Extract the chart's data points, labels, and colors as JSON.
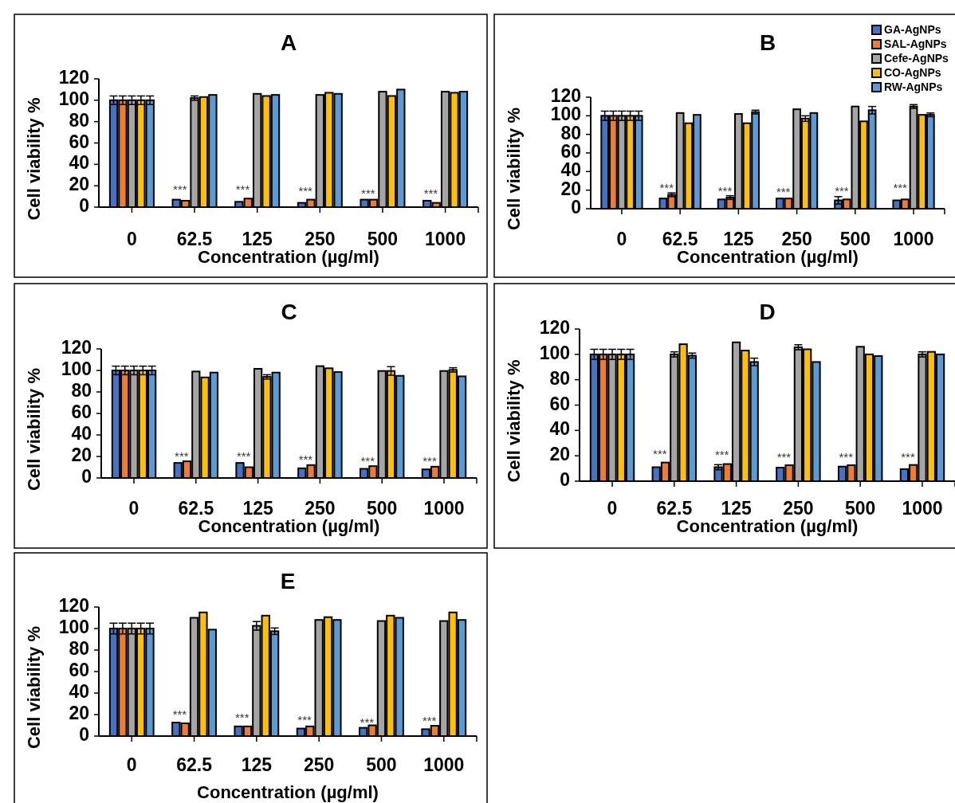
{
  "chart_data": [
    {
      "type": "bar",
      "title": "A",
      "xlabel": "Concentration (µg/ml)",
      "ylabel": "Cell viability %",
      "categories": [
        "0",
        "62.5",
        "125",
        "250",
        "500",
        "1000"
      ],
      "ylim": [
        0,
        120
      ],
      "yticks": [
        0,
        20,
        40,
        60,
        80,
        100,
        120
      ],
      "legend": false,
      "series": [
        {
          "color": "#4472c4",
          "values": [
            100,
            7,
            5,
            4,
            7,
            6
          ],
          "errors": [
            4,
            null,
            null,
            null,
            null,
            null
          ]
        },
        {
          "color": "#ed7d31",
          "values": [
            100,
            6,
            8,
            7,
            7,
            4
          ],
          "errors": [
            4,
            null,
            null,
            null,
            null,
            null
          ]
        },
        {
          "color": "#a5a5a5",
          "values": [
            100,
            102,
            106,
            105,
            108,
            108
          ],
          "errors": [
            4,
            2,
            null,
            null,
            null,
            null
          ]
        },
        {
          "color": "#ffc000",
          "values": [
            100,
            103,
            104,
            107,
            104,
            107
          ],
          "errors": [
            4,
            null,
            null,
            null,
            null,
            null
          ]
        },
        {
          "color": "#5b9bd5",
          "values": [
            100,
            105,
            105,
            106,
            110,
            108
          ],
          "errors": [
            4,
            null,
            null,
            null,
            null,
            null
          ]
        }
      ],
      "annotations": [
        {
          "text": "***",
          "x": "62.5",
          "y": 16
        },
        {
          "text": "***",
          "x": "125",
          "y": 16
        },
        {
          "text": "***",
          "x": "250",
          "y": 14
        },
        {
          "text": "***",
          "x": "500",
          "y": 12
        },
        {
          "text": "***",
          "x": "1000",
          "y": 12
        }
      ]
    },
    {
      "type": "bar",
      "title": "B",
      "xlabel": "Concentration (µg/ml)",
      "ylabel": "Cell viability %",
      "categories": [
        "0",
        "62.5",
        "125",
        "250",
        "500",
        "1000"
      ],
      "ylim": [
        0,
        120
      ],
      "yticks": [
        0,
        20,
        40,
        60,
        80,
        100,
        120
      ],
      "legend": "top right",
      "series": [
        {
          "name": "GA-AgNPs",
          "color": "#4472c4",
          "values": [
            100,
            11,
            10,
            11,
            9,
            9
          ],
          "errors": [
            5,
            null,
            null,
            null,
            4,
            null
          ]
        },
        {
          "name": "SAL-AgNPs",
          "color": "#ed7d31",
          "values": [
            100,
            15,
            12,
            11,
            10,
            10
          ],
          "errors": [
            5,
            2,
            2,
            null,
            null,
            null
          ]
        },
        {
          "name": "Cefe-AgNPs",
          "color": "#a5a5a5",
          "values": [
            100,
            103,
            102,
            107,
            110,
            110
          ],
          "errors": [
            5,
            null,
            null,
            null,
            null,
            2
          ]
        },
        {
          "name": "CO-AgNPs",
          "color": "#ffc000",
          "values": [
            100,
            92,
            92,
            97,
            94,
            101
          ],
          "errors": [
            5,
            null,
            null,
            3,
            null,
            null
          ]
        },
        {
          "name": "RW-AgNPs",
          "color": "#5b9bd5",
          "values": [
            100,
            101,
            104,
            103,
            106,
            101
          ],
          "errors": [
            5,
            null,
            2,
            null,
            4,
            2
          ]
        }
      ],
      "annotations": [
        {
          "text": "***",
          "x": "62.5",
          "y": 21
        },
        {
          "text": "***",
          "x": "125",
          "y": 18
        },
        {
          "text": "***",
          "x": "250",
          "y": 17
        },
        {
          "text": "***",
          "x": "500",
          "y": 18
        },
        {
          "text": "***",
          "x": "1000",
          "y": 21
        }
      ]
    },
    {
      "type": "bar",
      "title": "C",
      "xlabel": "Concentration (µg/ml)",
      "ylabel": "Cell viability %",
      "categories": [
        "0",
        "62.5",
        "125",
        "250",
        "500",
        "1000"
      ],
      "ylim": [
        0,
        120
      ],
      "yticks": [
        0,
        20,
        40,
        60,
        80,
        100,
        120
      ],
      "legend": false,
      "series": [
        {
          "color": "#4472c4",
          "values": [
            100,
            14,
            14,
            9,
            8.5,
            8
          ],
          "errors": [
            4,
            null,
            null,
            null,
            null,
            null
          ]
        },
        {
          "color": "#ed7d31",
          "values": [
            100,
            15.5,
            10,
            12,
            11,
            10.5
          ],
          "errors": [
            4,
            null,
            null,
            null,
            null,
            null
          ]
        },
        {
          "color": "#a5a5a5",
          "values": [
            100,
            99,
            101.5,
            104,
            99.5,
            99.5
          ],
          "errors": [
            4,
            null,
            null,
            null,
            null,
            null
          ]
        },
        {
          "color": "#ffc000",
          "values": [
            100,
            93.5,
            94,
            102,
            99.5,
            100.5
          ],
          "errors": [
            4,
            null,
            2,
            null,
            4,
            2
          ]
        },
        {
          "color": "#5b9bd5",
          "values": [
            100,
            98,
            98,
            98.5,
            95,
            94.5
          ],
          "errors": [
            4,
            null,
            null,
            null,
            null,
            null
          ]
        }
      ],
      "annotations": [
        {
          "text": "***",
          "x": "62.5",
          "y": 19.5
        },
        {
          "text": "***",
          "x": "125",
          "y": 19
        },
        {
          "text": "***",
          "x": "250",
          "y": 16
        },
        {
          "text": "***",
          "x": "500",
          "y": 15
        },
        {
          "text": "***",
          "x": "1000",
          "y": 15
        }
      ]
    },
    {
      "type": "bar",
      "title": "D",
      "xlabel": "Concentration (µg/ml)",
      "ylabel": "Cell viability %",
      "categories": [
        "0",
        "62.5",
        "125",
        "250",
        "500",
        "1000"
      ],
      "ylim": [
        0,
        120
      ],
      "yticks": [
        0,
        20,
        40,
        60,
        80,
        100,
        120
      ],
      "legend": false,
      "series": [
        {
          "color": "#4472c4",
          "values": [
            100,
            11,
            11,
            10.7,
            11.5,
            9.5
          ],
          "errors": [
            4,
            null,
            2,
            null,
            null,
            null
          ]
        },
        {
          "color": "#ed7d31",
          "values": [
            100,
            14.7,
            13.5,
            12.6,
            12.6,
            12.8
          ],
          "errors": [
            4,
            null,
            null,
            null,
            null,
            null
          ]
        },
        {
          "color": "#a5a5a5",
          "values": [
            100,
            100,
            109.5,
            105.6,
            106,
            100
          ],
          "errors": [
            4,
            2,
            null,
            2,
            null,
            2
          ]
        },
        {
          "color": "#ffc000",
          "values": [
            100,
            108,
            103,
            104,
            100,
            102
          ],
          "errors": [
            4,
            null,
            null,
            null,
            null,
            null
          ]
        },
        {
          "color": "#5b9bd5",
          "values": [
            100,
            99,
            94,
            94,
            98.7,
            100
          ],
          "errors": [
            4,
            2,
            3,
            null,
            null,
            null
          ]
        }
      ],
      "annotations": [
        {
          "text": "***",
          "x": "62.5",
          "y": 21
        },
        {
          "text": "***",
          "x": "125",
          "y": 20
        },
        {
          "text": "***",
          "x": "250",
          "y": 18.5
        },
        {
          "text": "***",
          "x": "500",
          "y": 18.5
        },
        {
          "text": "***",
          "x": "1000",
          "y": 18.5
        }
      ]
    },
    {
      "type": "bar",
      "title": "E",
      "xlabel": "Concentration (µg/ml)",
      "ylabel": "Cell viability %",
      "categories": [
        "0",
        "62.5",
        "125",
        "250",
        "500",
        "1000"
      ],
      "ylim": [
        0,
        120
      ],
      "yticks": [
        0,
        20,
        40,
        60,
        80,
        100,
        120
      ],
      "legend": false,
      "series": [
        {
          "color": "#4472c4",
          "values": [
            100,
            12.6,
            9,
            7,
            7.7,
            6.4
          ],
          "errors": [
            5,
            null,
            null,
            null,
            null,
            null
          ]
        },
        {
          "color": "#ed7d31",
          "values": [
            100,
            11.9,
            9,
            9,
            10,
            9.6
          ],
          "errors": [
            5,
            null,
            null,
            null,
            null,
            null
          ]
        },
        {
          "color": "#a5a5a5",
          "values": [
            100,
            110,
            102.5,
            108,
            107,
            107
          ],
          "errors": [
            5,
            null,
            4,
            null,
            null,
            null
          ]
        },
        {
          "color": "#ffc000",
          "values": [
            100,
            115,
            112,
            110.6,
            112,
            115
          ],
          "errors": [
            5,
            null,
            null,
            null,
            null,
            null
          ]
        },
        {
          "color": "#5b9bd5",
          "values": [
            100,
            99,
            97.5,
            108,
            110,
            108
          ],
          "errors": [
            5,
            null,
            3,
            null,
            null,
            null
          ]
        }
      ],
      "annotations": [
        {
          "text": "***",
          "x": "62.5",
          "y": 19
        },
        {
          "text": "***",
          "x": "125",
          "y": 16.6
        },
        {
          "text": "***",
          "x": "250",
          "y": 14
        },
        {
          "text": "***",
          "x": "500",
          "y": 11.6
        },
        {
          "text": "***",
          "x": "1000",
          "y": 13.4
        }
      ]
    }
  ]
}
